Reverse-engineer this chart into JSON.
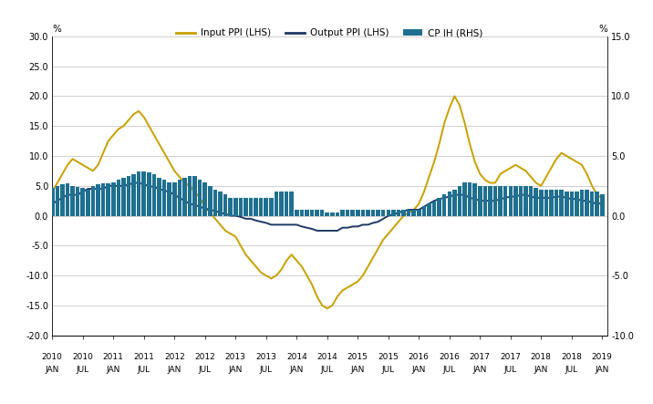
{
  "input_ppi": [
    4.0,
    5.5,
    7.0,
    8.5,
    9.5,
    9.0,
    8.5,
    8.0,
    7.5,
    8.5,
    10.5,
    12.5,
    13.5,
    14.5,
    15.0,
    16.0,
    17.0,
    17.5,
    16.5,
    15.0,
    13.5,
    12.0,
    10.5,
    9.0,
    7.5,
    6.5,
    5.5,
    5.0,
    4.0,
    3.0,
    1.5,
    0.5,
    -0.5,
    -1.5,
    -2.5,
    -3.0,
    -3.5,
    -5.0,
    -6.5,
    -7.5,
    -8.5,
    -9.5,
    -10.0,
    -10.5,
    -10.0,
    -9.0,
    -7.5,
    -6.5,
    -7.5,
    -8.5,
    -10.0,
    -11.5,
    -13.5,
    -15.0,
    -15.5,
    -15.0,
    -13.5,
    -12.5,
    -12.0,
    -11.5,
    -11.0,
    -10.0,
    -8.5,
    -7.0,
    -5.5,
    -4.0,
    -3.0,
    -2.0,
    -1.0,
    0.0,
    0.5,
    1.0,
    2.0,
    4.0,
    6.5,
    9.0,
    12.0,
    15.5,
    18.0,
    20.0,
    18.5,
    15.5,
    12.0,
    9.0,
    7.0,
    6.0,
    5.5,
    5.5,
    7.0,
    7.5,
    8.0,
    8.5,
    8.0,
    7.5,
    6.5,
    5.5,
    5.0,
    6.5,
    8.0,
    9.5,
    10.5,
    10.0,
    9.5,
    9.0,
    8.5,
    7.0,
    5.0,
    3.5,
    2.9
  ],
  "output_ppi": [
    2.0,
    2.5,
    3.0,
    3.5,
    3.5,
    3.5,
    4.0,
    4.5,
    4.5,
    4.5,
    4.5,
    5.0,
    5.0,
    5.0,
    5.0,
    5.2,
    5.5,
    5.5,
    5.2,
    5.0,
    4.8,
    4.5,
    4.2,
    4.0,
    3.5,
    3.0,
    2.5,
    2.0,
    1.8,
    1.5,
    1.2,
    1.0,
    0.8,
    0.5,
    0.3,
    0.0,
    0.0,
    -0.2,
    -0.5,
    -0.5,
    -0.8,
    -1.0,
    -1.2,
    -1.5,
    -1.5,
    -1.5,
    -1.5,
    -1.5,
    -1.5,
    -1.8,
    -2.0,
    -2.2,
    -2.5,
    -2.5,
    -2.5,
    -2.5,
    -2.5,
    -2.0,
    -2.0,
    -1.8,
    -1.8,
    -1.5,
    -1.5,
    -1.2,
    -1.0,
    -0.5,
    0.0,
    0.2,
    0.5,
    0.8,
    1.0,
    1.0,
    1.0,
    1.5,
    2.0,
    2.5,
    2.8,
    3.0,
    3.2,
    3.5,
    3.5,
    3.5,
    3.0,
    2.8,
    2.5,
    2.5,
    2.5,
    2.5,
    2.8,
    3.0,
    3.2,
    3.2,
    3.5,
    3.5,
    3.2,
    3.0,
    3.0,
    3.0,
    3.0,
    3.2,
    3.2,
    3.0,
    2.8,
    2.8,
    2.5,
    2.5,
    2.2,
    2.0,
    2.1
  ],
  "cpih": [
    2.3,
    2.5,
    2.6,
    2.7,
    2.5,
    2.4,
    2.3,
    2.2,
    2.5,
    2.6,
    2.7,
    2.7,
    2.8,
    3.0,
    3.2,
    3.3,
    3.5,
    3.7,
    3.7,
    3.6,
    3.5,
    3.2,
    3.0,
    2.8,
    2.8,
    3.0,
    3.2,
    3.3,
    3.3,
    3.0,
    2.8,
    2.5,
    2.2,
    2.0,
    1.8,
    1.5,
    1.5,
    1.5,
    1.5,
    1.5,
    1.5,
    1.5,
    1.5,
    1.5,
    2.0,
    2.0,
    2.0,
    2.0,
    0.5,
    0.5,
    0.5,
    0.5,
    0.5,
    0.5,
    0.3,
    0.3,
    0.3,
    0.5,
    0.5,
    0.5,
    0.5,
    0.5,
    0.5,
    0.5,
    0.5,
    0.5,
    0.5,
    0.5,
    0.5,
    0.5,
    0.5,
    0.5,
    0.5,
    0.8,
    1.0,
    1.2,
    1.5,
    1.8,
    2.0,
    2.2,
    2.5,
    2.8,
    2.8,
    2.7,
    2.5,
    2.5,
    2.5,
    2.5,
    2.5,
    2.5,
    2.5,
    2.5,
    2.5,
    2.5,
    2.5,
    2.3,
    2.2,
    2.2,
    2.2,
    2.2,
    2.2,
    2.0,
    2.0,
    2.0,
    2.2,
    2.2,
    2.0,
    2.0,
    1.8
  ],
  "n_months": 109,
  "start_year": 2010,
  "start_month": 1,
  "lhs_ylim": [
    -20.0,
    30.0
  ],
  "rhs_ylim": [
    -10.0,
    15.0
  ],
  "lhs_yticks": [
    -20.0,
    -15.0,
    -10.0,
    -5.0,
    0.0,
    5.0,
    10.0,
    15.0,
    20.0,
    25.0,
    30.0
  ],
  "rhs_yticks": [
    -10.0,
    -5.0,
    0.0,
    5.0,
    10.0,
    15.0
  ],
  "input_ppi_color": "#C8A000",
  "output_ppi_color": "#1F3864",
  "cpih_bar_color": "#1F7090",
  "background_color": "#FFFFFF",
  "grid_color": "#C8C8C8",
  "legend_labels": [
    "Input PPI (LHS)",
    "Output PPI (LHS)",
    "CP IH (RHS)"
  ],
  "x_tick_years": [
    2010,
    2010,
    2011,
    2011,
    2012,
    2012,
    2013,
    2013,
    2014,
    2014,
    2015,
    2015,
    2016,
    2016,
    2017,
    2017,
    2018,
    2018,
    2019
  ],
  "x_tick_months": [
    "JAN",
    "JUL",
    "JAN",
    "JUL",
    "JAN",
    "JUL",
    "JAN",
    "JUL",
    "JAN",
    "JUL",
    "JAN",
    "JUL",
    "JAN",
    "JUL",
    "JAN",
    "JUL",
    "JAN",
    "JUL",
    "JAN"
  ]
}
